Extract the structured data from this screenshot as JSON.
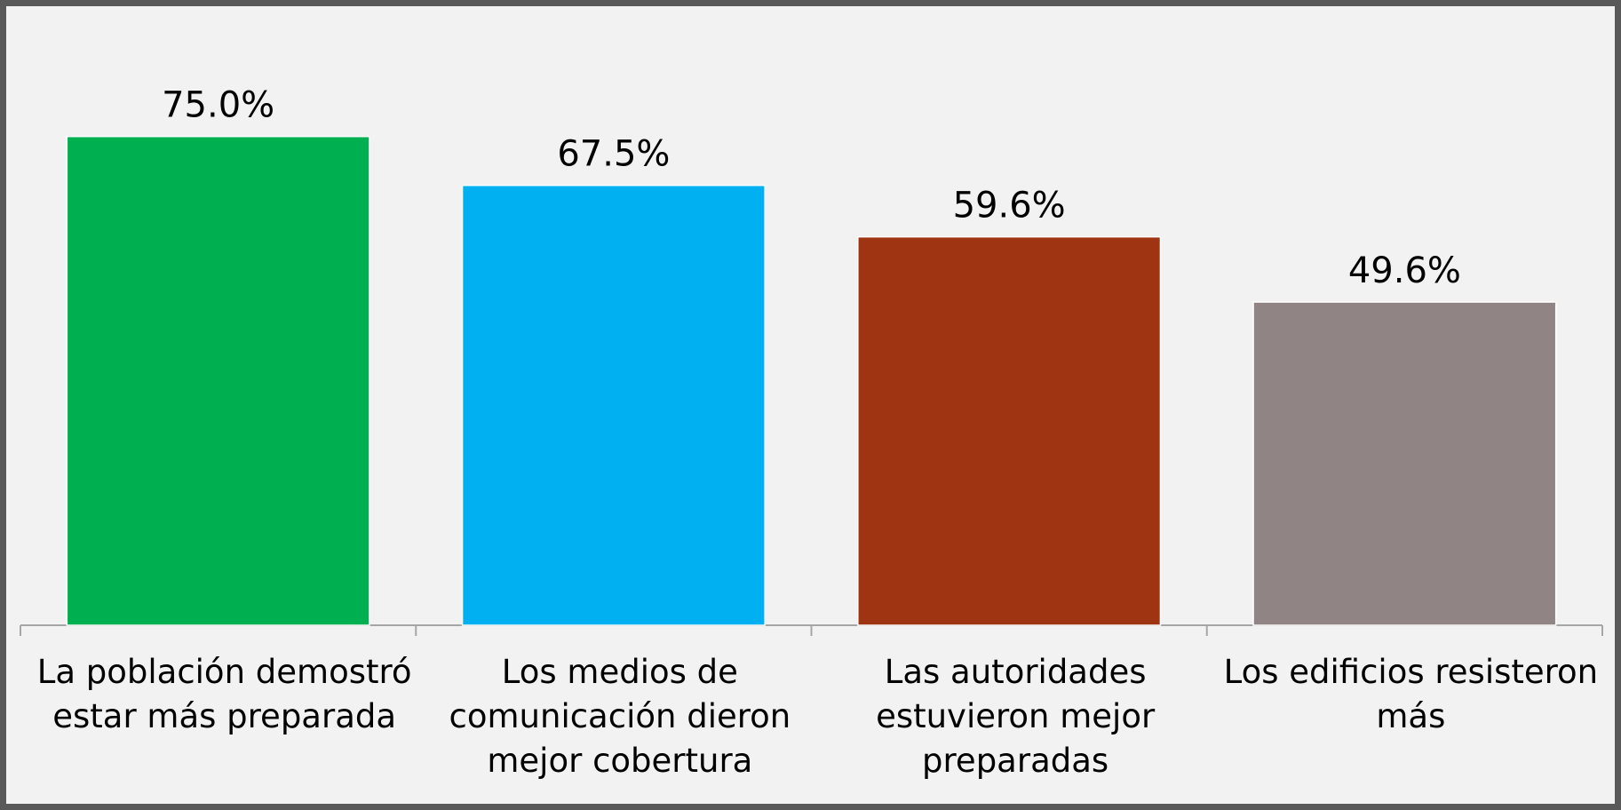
{
  "chart_data": {
    "type": "bar",
    "categories": [
      "La población demostró estar más preparada",
      "Los medios de comunicación dieron mejor cobertura",
      "Las autoridades estuvieron mejor preparadas",
      "Los edificios resisteron más"
    ],
    "values": [
      75.0,
      67.5,
      59.6,
      49.6
    ],
    "value_labels": [
      "75.0%",
      "67.5%",
      "59.6%",
      "49.6%"
    ],
    "colors": [
      "#00b050",
      "#00b0f0",
      "#9e3411",
      "#908584"
    ],
    "ylim": [
      0,
      80
    ]
  }
}
